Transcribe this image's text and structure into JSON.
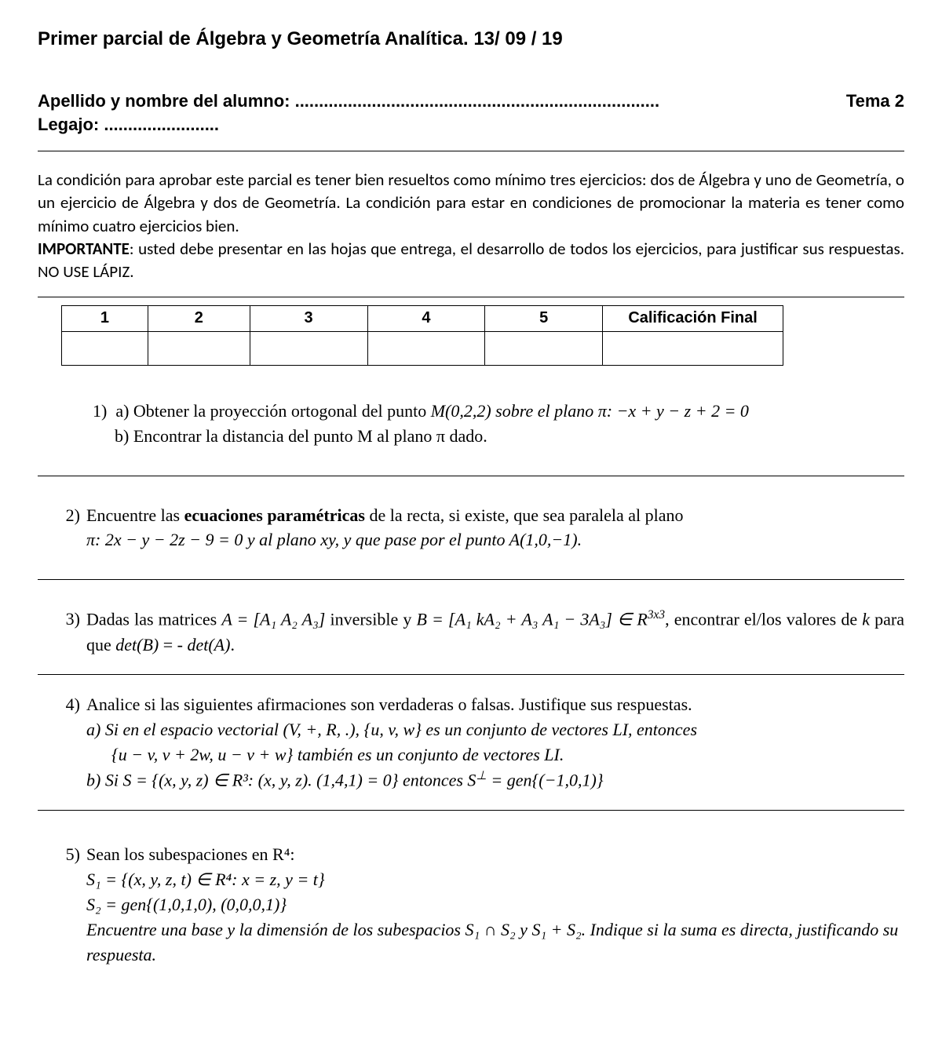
{
  "title": "Primer parcial de Álgebra y Geometría Analítica. 13/ 09 / 19",
  "student": {
    "name_label": "Apellido y nombre del alumno: ............................................................................",
    "tema_label": "Tema 2",
    "legajo_label": "Legajo: ........................"
  },
  "instructions": {
    "p1": "La condición para aprobar este parcial es tener bien resueltos como mínimo tres ejercicios: dos de Álgebra y uno de Geometría, o un ejercicio de Álgebra y dos de Geometría. La condición para estar en condiciones de promocionar la materia es tener como mínimo cuatro ejercicios bien.",
    "important_label": "IMPORTANTE",
    "p2": ": usted debe presentar en las hojas que entrega, el desarrollo de todos los ejercicios, para justificar sus respuestas.  NO USE LÁPIZ."
  },
  "grades_table": {
    "headers": [
      "1",
      "2",
      "3",
      "4",
      "5",
      "Calificación Final"
    ],
    "col_widths": [
      "110px",
      "130px",
      "150px",
      "150px",
      "150px",
      "230px"
    ]
  },
  "ex1": {
    "num": "1)",
    "a_pre": "a) Obtener la proyección ortogonal del punto ",
    "a_math": "M(0,2,2) sobre el plano π: −x + y − z + 2 = 0",
    "b": "b) Encontrar la distancia del punto M al plano π dado."
  },
  "ex2": {
    "num": "2)",
    "l1_pre": "Encuentre las ",
    "l1_bold": "ecuaciones paramétricas",
    "l1_post": " de la recta, si existe, que sea paralela al plano",
    "l2": "π: 2x − y − 2z − 9 = 0 y al plano xy, y que pase por el punto A(1,0,−1)."
  },
  "ex3": {
    "num": "3)",
    "pre": "Dadas  las  matrices  ",
    "A": "A = [A₁  A₂  A₃]",
    "mid1": "   inversible  y  ",
    "B": "B = [A₁   kA₂ + A₃   A₁ − 3A₃] ∈ R",
    "Bexp": "3x3",
    "post1": ",",
    "l2_pre": "encontrar el/los valores de ",
    "k": "k",
    "l2_mid": " para que ",
    "detB": "det(B)",
    "l2_eq": " = - ",
    "detA": "det(A)",
    "l2_end": "."
  },
  "ex4": {
    "num": "4)",
    "head": "Analice si las siguientes afirmaciones son verdaderas o falsas. Justifique sus respuestas.",
    "a_l1": "a)  Si  en  el  espacio  vectorial  (V, +, R, .),    {u, v, w}  es  un  conjunto  de  vectores  LI,  entonces",
    "a_l2": "{u − v, v + 2w, u − v + w}  también es un conjunto de vectores LI.",
    "b_pre": "b)  Si S = {(x, y, z) ∈ R³: (x, y, z). (1,4,1) = 0} entonces S",
    "b_perp": "⊥",
    "b_post": " = gen{(−1,0,1)}"
  },
  "ex5": {
    "num": "5)",
    "head": "Sean los subespaciones en R⁴:",
    "s1": "S₁ = {(x, y, z, t) ∈ R⁴: x = z, y = t}",
    "s2": "S₂ = gen{(1,0,1,0), (0,0,0,1)}",
    "tail": "Encuentre una base y la dimensión de los subespacios S₁ ∩ S₂  y S₁ + S₂. Indique si la suma es directa, justificando su respuesta."
  }
}
